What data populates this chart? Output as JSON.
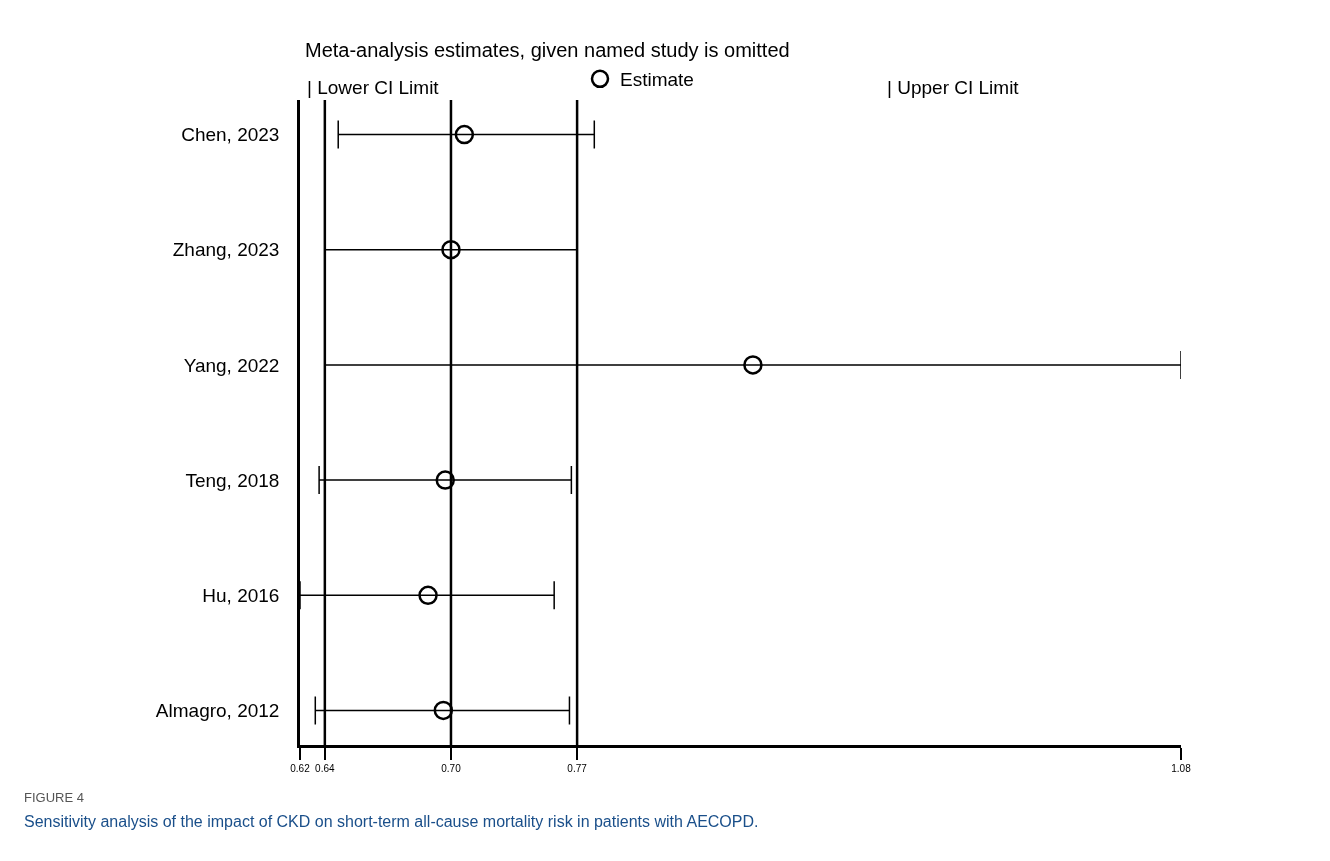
{
  "chart_data": {
    "type": "scatter",
    "orientation": "horizontal",
    "title": "Meta-analysis estimates, given named study is omitted",
    "categories": [
      "Chen, 2023",
      "Zhang, 2023",
      "Yang, 2022",
      "Teng, 2018",
      "Hu, 2016",
      "Almagro, 2012"
    ],
    "series": [
      {
        "name": "Estimate",
        "color": "#000000",
        "values": [
          0.709,
          0.702,
          0.86,
          0.699,
          0.69,
          0.698
        ],
        "errors": [
          [
            0.643,
            0.777
          ],
          [
            0.636,
            0.768
          ],
          [
            0.636,
            1.084
          ],
          [
            0.633,
            0.765
          ],
          [
            0.623,
            0.756
          ],
          [
            0.631,
            0.764
          ]
        ]
      }
    ],
    "marker": "circle",
    "xlim": [
      0.623,
      1.084
    ],
    "xticks": [
      {
        "value": 0.623,
        "label": "0.62"
      },
      {
        "value": 0.636,
        "label": "0.64"
      },
      {
        "value": 0.702,
        "label": "0.70"
      },
      {
        "value": 0.768,
        "label": "0.77"
      },
      {
        "value": 1.084,
        "label": "1.08"
      }
    ],
    "ref_lines": [
      {
        "axis": "x",
        "value": 0.636,
        "color": "#000000"
      },
      {
        "axis": "x",
        "value": 0.702,
        "color": "#000000"
      },
      {
        "axis": "x",
        "value": 0.768,
        "color": "#000000"
      }
    ],
    "grid": false,
    "legend": "top",
    "annotations": [
      "| Lower CI Limit",
      "| Upper CI Limit",
      "FIGURE 4",
      "Sensitivity analysis of the impact of CKD on short-term all-cause mortality risk in patients with AECOPD."
    ]
  }
}
